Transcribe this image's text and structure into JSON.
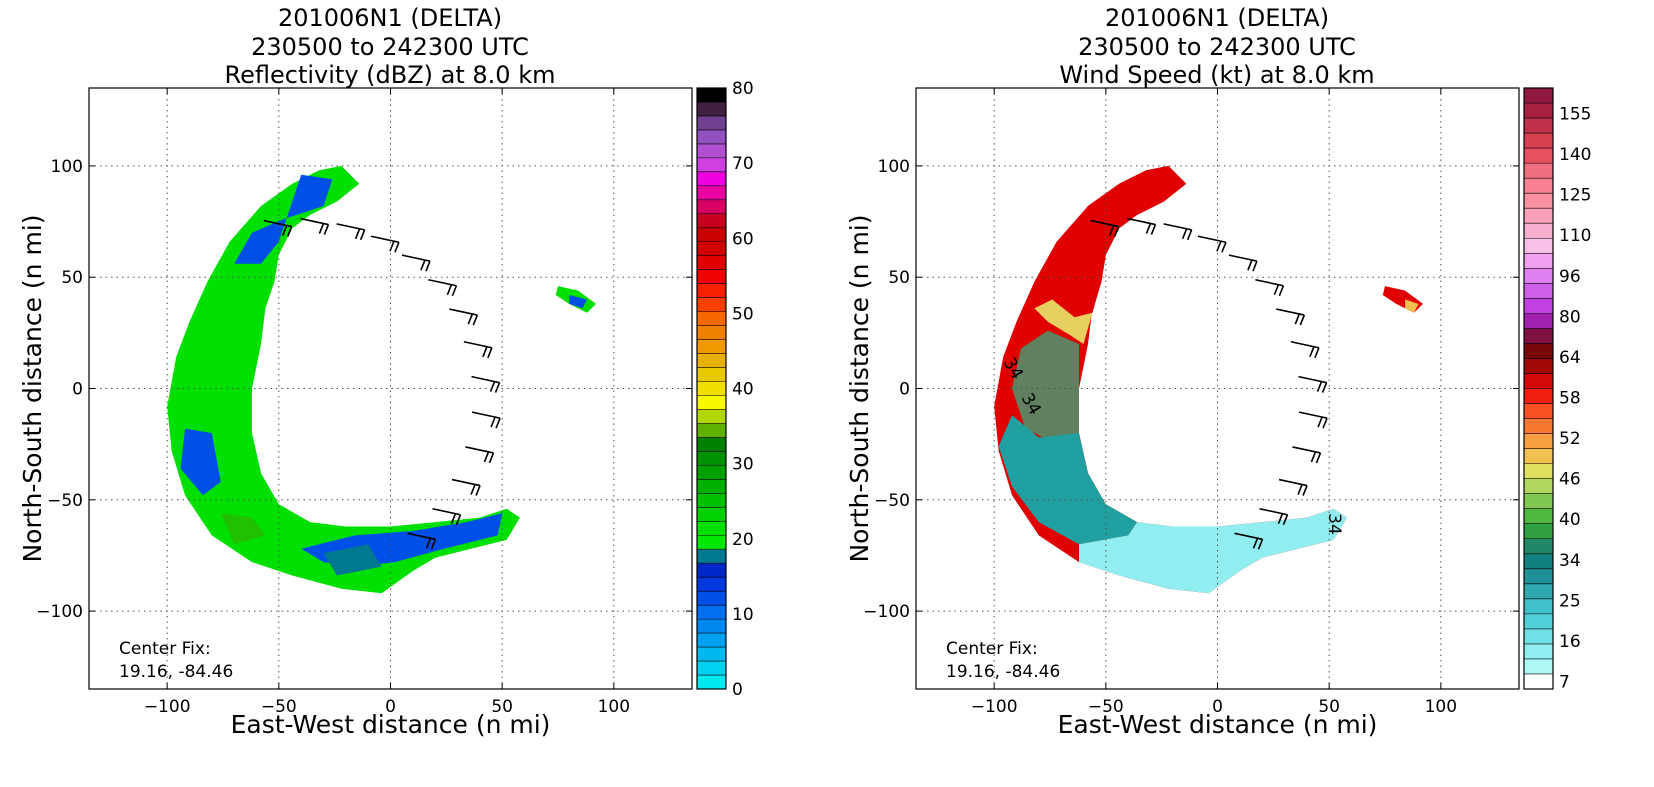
{
  "chart_data": [
    {
      "type": "heatmap",
      "title_lines": [
        "201006N1 (DELTA)",
        "230500 to 242300 UTC",
        "Reflectivity (dBZ) at 8.0 km"
      ],
      "xlabel": "East-West distance (n mi)",
      "ylabel": "North-South distance (n mi)",
      "xlim": [
        -135,
        135
      ],
      "ylim": [
        -135,
        135
      ],
      "xticks": [
        -100,
        -50,
        0,
        50,
        100
      ],
      "yticks": [
        -100,
        -50,
        0,
        50,
        100
      ],
      "grid": true,
      "annotation_lines": [
        "Center Fix:",
        "19.16, -84.46"
      ],
      "colorbar": {
        "min": 0,
        "max": 80,
        "tick_labels": [
          "0",
          "10",
          "20",
          "30",
          "40",
          "50",
          "60",
          "70",
          "80"
        ],
        "colors": [
          "#00e8f0",
          "#00d0f0",
          "#00b8f0",
          "#00a0f0",
          "#0088f0",
          "#0070f0",
          "#0050e8",
          "#0038e0",
          "#0028c8",
          "#007890",
          "#00e800",
          "#00e000",
          "#00d000",
          "#00c000",
          "#00b000",
          "#00a000",
          "#009000",
          "#008000",
          "#60b000",
          "#b0d800",
          "#f8f800",
          "#f0e000",
          "#e8c800",
          "#e8b000",
          "#f09800",
          "#f08000",
          "#f86800",
          "#f84000",
          "#f82000",
          "#f00000",
          "#e00000",
          "#d00000",
          "#c80000",
          "#c80020",
          "#d80060",
          "#e800a0",
          "#f000e0",
          "#d040e0",
          "#b050d0",
          "#9050c0",
          "#704090",
          "#402040",
          "#000000"
        ]
      },
      "echo_regions": [
        {
          "name": "main-band",
          "colors": [
            "#00e000",
            "#20c000",
            "#0050e8",
            "#007890"
          ]
        },
        {
          "name": "east-cell",
          "colors": [
            "#00e000",
            "#0050e8"
          ]
        }
      ]
    },
    {
      "type": "heatmap",
      "title_lines": [
        "201006N1 (DELTA)",
        "230500 to 242300 UTC",
        "Wind Speed (kt) at 8.0 km"
      ],
      "xlabel": "East-West distance (n mi)",
      "ylabel": "North-South distance (n mi)",
      "xlim": [
        -135,
        135
      ],
      "ylim": [
        -135,
        135
      ],
      "xticks": [
        -100,
        -50,
        0,
        50,
        100
      ],
      "yticks": [
        -100,
        -50,
        0,
        50,
        100
      ],
      "grid": true,
      "annotation_lines": [
        "Center Fix:",
        "19.16, -84.46"
      ],
      "contour_labels": [
        "34",
        "34",
        "34"
      ],
      "colorbar": {
        "tick_labels": [
          "7",
          "16",
          "25",
          "34",
          "40",
          "46",
          "52",
          "58",
          "64",
          "80",
          "96",
          "110",
          "125",
          "140",
          "155"
        ],
        "colors": [
          "#ffffff",
          "#b0f8f8",
          "#90eef0",
          "#70e0e8",
          "#50d0d8",
          "#40c0c8",
          "#30a8b0",
          "#209098",
          "#108080",
          "#208868",
          "#30a040",
          "#50b840",
          "#80c850",
          "#b0d860",
          "#e0e060",
          "#f0c050",
          "#f8a040",
          "#f87830",
          "#f85020",
          "#f02010",
          "#d00808",
          "#a00808",
          "#780808",
          "#801040",
          "#a020b0",
          "#c040e0",
          "#d060e8",
          "#e080f0",
          "#f0a0f0",
          "#f8c0e8",
          "#f8b0d0",
          "#f8a0b8",
          "#f890a0",
          "#f88090",
          "#f07080",
          "#e85060",
          "#d84050",
          "#c03048",
          "#a82040",
          "#901840"
        ]
      },
      "echo_regions": [
        {
          "name": "main-band",
          "colors": [
            "#e00000",
            "#e8d060",
            "#608060",
            "#20a0a0",
            "#90eef0"
          ]
        },
        {
          "name": "east-cell",
          "colors": [
            "#e00000",
            "#f0c050"
          ]
        }
      ]
    }
  ]
}
